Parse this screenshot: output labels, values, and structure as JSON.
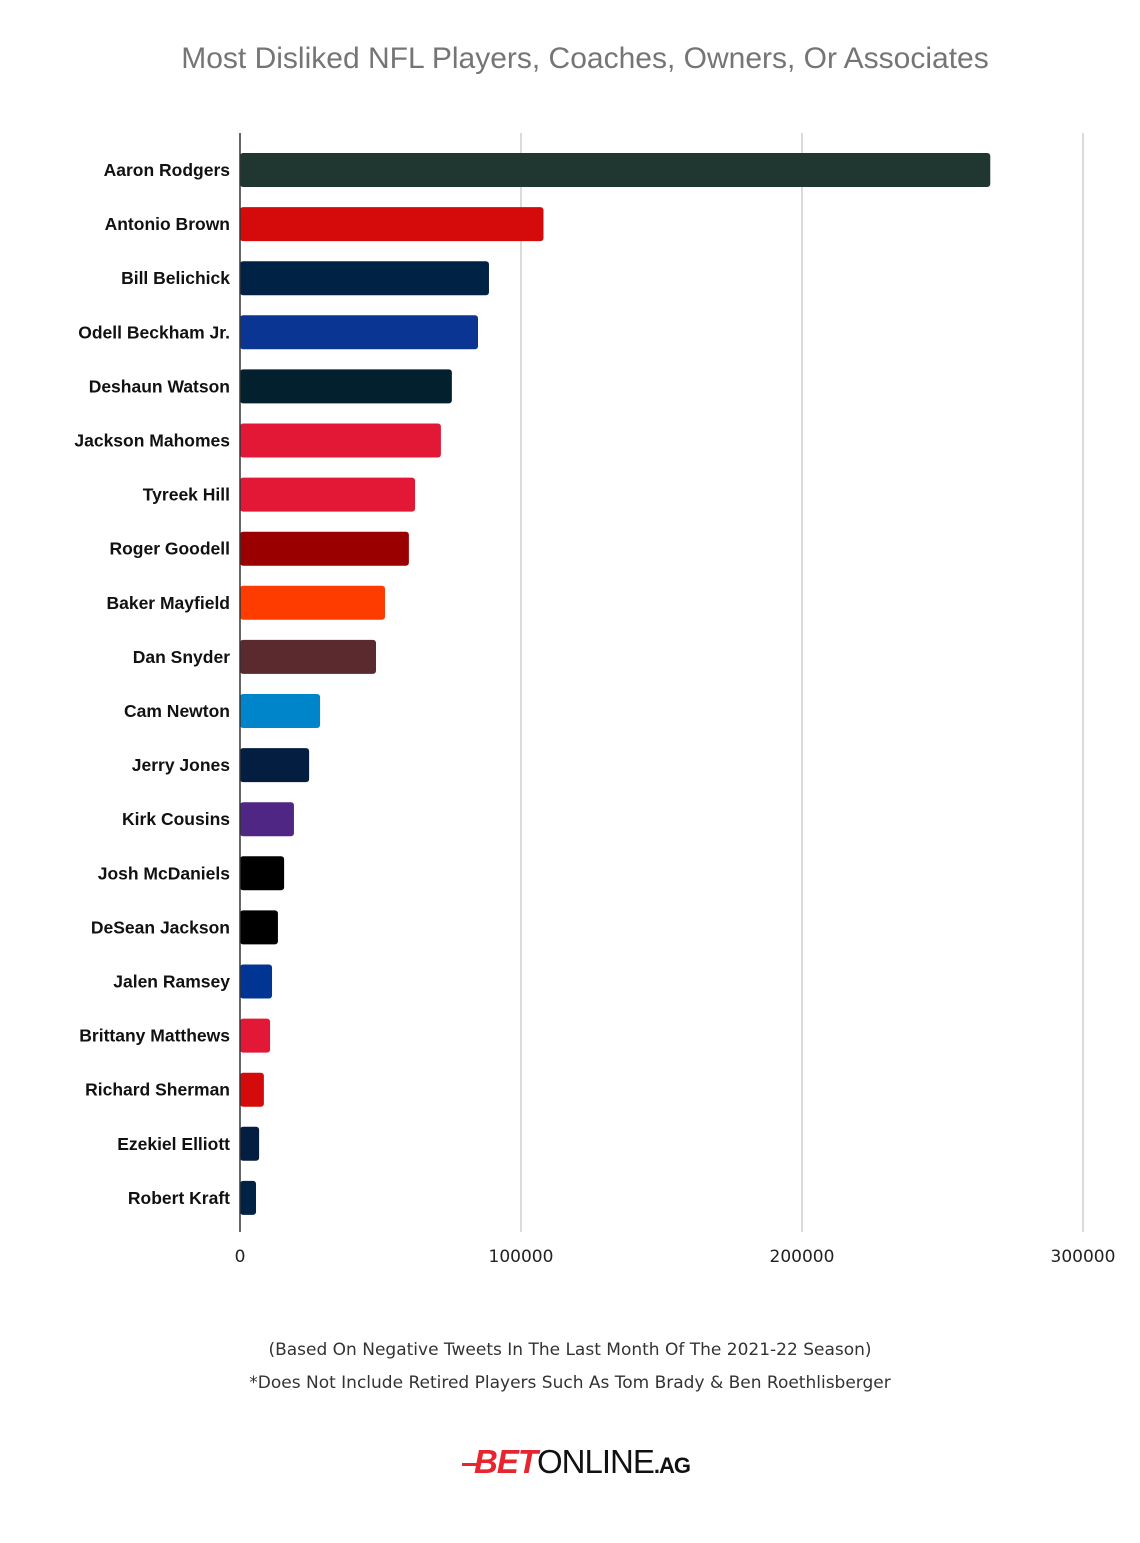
{
  "chart_data": {
    "type": "bar",
    "orientation": "horizontal",
    "title": "Most Disliked NFL Players, Coaches, Owners, Or Associates",
    "xlabel": "",
    "ylabel": "",
    "xlim": [
      0,
      300000
    ],
    "xticks": [
      "0",
      "100000",
      "200000",
      "300000"
    ],
    "grid": true,
    "categories": [
      "Aaron Rodgers",
      "Antonio Brown",
      "Bill Belichick",
      "Odell Beckham Jr.",
      "Deshaun Watson",
      "Jackson Mahomes",
      "Tyreek Hill",
      "Roger Goodell",
      "Baker Mayfield",
      "Dan Snyder",
      "Cam Newton",
      "Jerry Jones",
      "Kirk Cousins",
      "Josh McDaniels",
      "DeSean Jackson",
      "Jalen Ramsey",
      "Brittany Matthews",
      "Richard Sherman",
      "Ezekiel Elliott",
      "Robert Kraft"
    ],
    "values": [
      267000,
      108000,
      88600,
      84700,
      75400,
      71500,
      62300,
      60100,
      51600,
      48400,
      28500,
      24600,
      19200,
      15700,
      13500,
      11400,
      10700,
      8500,
      6800,
      5700
    ],
    "colors": [
      "#203731",
      "#d50a0a",
      "#002244",
      "#0b3592",
      "#03202f",
      "#e31837",
      "#e31837",
      "#9b0000",
      "#ff3c00",
      "#5a2a2e",
      "#0085ca",
      "#041e42",
      "#4f2683",
      "#000000",
      "#000000",
      "#003594",
      "#e31837",
      "#d50a0a",
      "#041e42",
      "#002244"
    ]
  },
  "footnotes": {
    "line1": "(Based On Negative Tweets In The Last Month Of The 2021-22 Season)",
    "line2": "*Does Not Include Retired Players Such As Tom Brady & Ben Roethlisberger"
  },
  "logo": {
    "bet": "BET",
    "online": "ONLINE",
    "ag": ".AG"
  }
}
